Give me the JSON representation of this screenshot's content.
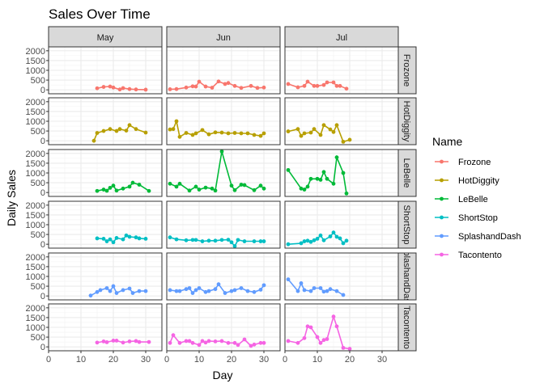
{
  "chart_data": {
    "type": "line",
    "title": "Sales Over Time",
    "xlabel": "Day",
    "ylabel": "Daily Sales",
    "xlim": [
      0,
      35
    ],
    "ylim": [
      -200,
      2200
    ],
    "x_ticks": [
      0,
      10,
      20,
      30
    ],
    "y_ticks": [
      0,
      500,
      1000,
      1500,
      2000
    ],
    "grid": true,
    "legend": {
      "title": "Name",
      "placement": "right"
    },
    "columns": [
      "May",
      "Jun",
      "Jul"
    ],
    "rows": [
      "Frozone",
      "HotDiggity",
      "LeBelle",
      "ShortStop",
      "SplashandDash",
      "Tacontento"
    ],
    "series": [
      {
        "name": "Frozone",
        "color": "#F8766D",
        "May": [
          [
            15,
            80
          ],
          [
            17,
            150
          ],
          [
            19,
            170
          ],
          [
            20,
            120
          ],
          [
            22,
            20
          ],
          [
            23,
            90
          ],
          [
            25,
            40
          ],
          [
            27,
            20
          ],
          [
            30,
            10
          ]
        ],
        "Jun": [
          [
            1,
            30
          ],
          [
            3,
            40
          ],
          [
            6,
            120
          ],
          [
            8,
            180
          ],
          [
            9,
            170
          ],
          [
            10,
            420
          ],
          [
            12,
            170
          ],
          [
            14,
            110
          ],
          [
            16,
            430
          ],
          [
            18,
            300
          ],
          [
            19,
            350
          ],
          [
            21,
            200
          ],
          [
            23,
            100
          ],
          [
            26,
            200
          ],
          [
            28,
            100
          ],
          [
            30,
            120
          ]
        ],
        "Jul": [
          [
            1,
            300
          ],
          [
            4,
            130
          ],
          [
            6,
            200
          ],
          [
            7,
            420
          ],
          [
            9,
            200
          ],
          [
            10,
            200
          ],
          [
            12,
            250
          ],
          [
            13,
            380
          ],
          [
            15,
            380
          ],
          [
            16,
            200
          ],
          [
            17,
            200
          ],
          [
            19,
            60
          ]
        ]
      },
      {
        "name": "HotDiggity",
        "color": "#B79F00",
        "May": [
          [
            14,
            0
          ],
          [
            15,
            400
          ],
          [
            17,
            500
          ],
          [
            19,
            600
          ],
          [
            21,
            500
          ],
          [
            22,
            600
          ],
          [
            24,
            520
          ],
          [
            25,
            800
          ],
          [
            27,
            600
          ],
          [
            30,
            420
          ]
        ],
        "Jun": [
          [
            1,
            580
          ],
          [
            2,
            600
          ],
          [
            3,
            1000
          ],
          [
            4,
            200
          ],
          [
            6,
            400
          ],
          [
            8,
            300
          ],
          [
            9,
            380
          ],
          [
            11,
            550
          ],
          [
            13,
            330
          ],
          [
            15,
            430
          ],
          [
            17,
            420
          ],
          [
            19,
            380
          ],
          [
            21,
            400
          ],
          [
            23,
            380
          ],
          [
            25,
            380
          ],
          [
            27,
            300
          ],
          [
            29,
            250
          ],
          [
            30,
            380
          ]
        ],
        "Jul": [
          [
            1,
            480
          ],
          [
            4,
            600
          ],
          [
            5,
            250
          ],
          [
            6,
            380
          ],
          [
            8,
            420
          ],
          [
            9,
            600
          ],
          [
            11,
            300
          ],
          [
            12,
            800
          ],
          [
            14,
            580
          ],
          [
            15,
            450
          ],
          [
            16,
            800
          ],
          [
            18,
            -50
          ],
          [
            20,
            50
          ]
        ]
      },
      {
        "name": "LeBelle",
        "color": "#00BA38",
        "May": [
          [
            15,
            80
          ],
          [
            17,
            150
          ],
          [
            18,
            90
          ],
          [
            19,
            240
          ],
          [
            20,
            350
          ],
          [
            21,
            100
          ],
          [
            23,
            200
          ],
          [
            25,
            300
          ],
          [
            26,
            500
          ],
          [
            28,
            400
          ],
          [
            31,
            80
          ]
        ],
        "Jun": [
          [
            1,
            450
          ],
          [
            3,
            300
          ],
          [
            4,
            450
          ],
          [
            7,
            100
          ],
          [
            9,
            300
          ],
          [
            10,
            150
          ],
          [
            12,
            250
          ],
          [
            14,
            200
          ],
          [
            15,
            100
          ],
          [
            17,
            2100
          ],
          [
            20,
            350
          ],
          [
            21,
            120
          ],
          [
            23,
            400
          ],
          [
            24,
            380
          ],
          [
            27,
            120
          ],
          [
            29,
            350
          ],
          [
            30,
            200
          ]
        ],
        "Jul": [
          [
            1,
            1150
          ],
          [
            5,
            200
          ],
          [
            6,
            150
          ],
          [
            7,
            300
          ],
          [
            8,
            700
          ],
          [
            10,
            700
          ],
          [
            11,
            650
          ],
          [
            12,
            1050
          ],
          [
            13,
            700
          ],
          [
            15,
            450
          ],
          [
            16,
            1800
          ],
          [
            18,
            1000
          ],
          [
            19,
            -50
          ]
        ]
      },
      {
        "name": "ShortStop",
        "color": "#00BFC4",
        "May": [
          [
            15,
            300
          ],
          [
            17,
            280
          ],
          [
            18,
            150
          ],
          [
            19,
            250
          ],
          [
            20,
            100
          ],
          [
            21,
            320
          ],
          [
            23,
            250
          ],
          [
            24,
            450
          ],
          [
            25,
            380
          ],
          [
            27,
            350
          ],
          [
            28,
            300
          ],
          [
            30,
            280
          ]
        ],
        "Jun": [
          [
            1,
            350
          ],
          [
            3,
            250
          ],
          [
            6,
            200
          ],
          [
            8,
            220
          ],
          [
            9,
            220
          ],
          [
            11,
            150
          ],
          [
            13,
            180
          ],
          [
            15,
            180
          ],
          [
            17,
            220
          ],
          [
            19,
            230
          ],
          [
            20,
            100
          ],
          [
            21,
            -100
          ],
          [
            22,
            220
          ],
          [
            24,
            150
          ],
          [
            27,
            150
          ],
          [
            29,
            150
          ],
          [
            30,
            150
          ]
        ],
        "Jul": [
          [
            1,
            0
          ],
          [
            5,
            50
          ],
          [
            6,
            150
          ],
          [
            7,
            180
          ],
          [
            8,
            120
          ],
          [
            9,
            200
          ],
          [
            10,
            280
          ],
          [
            11,
            450
          ],
          [
            12,
            200
          ],
          [
            14,
            400
          ],
          [
            15,
            600
          ],
          [
            16,
            380
          ],
          [
            17,
            300
          ],
          [
            18,
            50
          ],
          [
            19,
            180
          ]
        ]
      },
      {
        "name": "SplashandDash",
        "color": "#619CFF",
        "May": [
          [
            13,
            20
          ],
          [
            15,
            200
          ],
          [
            16,
            300
          ],
          [
            18,
            400
          ],
          [
            19,
            250
          ],
          [
            20,
            500
          ],
          [
            21,
            150
          ],
          [
            23,
            300
          ],
          [
            25,
            380
          ],
          [
            26,
            150
          ],
          [
            28,
            250
          ],
          [
            30,
            250
          ]
        ],
        "Jun": [
          [
            1,
            300
          ],
          [
            3,
            250
          ],
          [
            4,
            250
          ],
          [
            6,
            350
          ],
          [
            7,
            400
          ],
          [
            8,
            150
          ],
          [
            9,
            300
          ],
          [
            10,
            400
          ],
          [
            12,
            200
          ],
          [
            13,
            250
          ],
          [
            15,
            350
          ],
          [
            16,
            600
          ],
          [
            18,
            150
          ],
          [
            20,
            250
          ],
          [
            21,
            300
          ],
          [
            23,
            400
          ],
          [
            25,
            250
          ],
          [
            27,
            200
          ],
          [
            29,
            320
          ],
          [
            30,
            550
          ]
        ],
        "Jul": [
          [
            1,
            850
          ],
          [
            4,
            250
          ],
          [
            5,
            650
          ],
          [
            6,
            300
          ],
          [
            8,
            250
          ],
          [
            9,
            400
          ],
          [
            11,
            400
          ],
          [
            12,
            220
          ],
          [
            13,
            250
          ],
          [
            14,
            350
          ],
          [
            16,
            250
          ],
          [
            18,
            50
          ]
        ]
      },
      {
        "name": "Tacontento",
        "color": "#F564E3",
        "May": [
          [
            15,
            220
          ],
          [
            17,
            280
          ],
          [
            18,
            240
          ],
          [
            20,
            320
          ],
          [
            21,
            320
          ],
          [
            23,
            220
          ],
          [
            25,
            280
          ],
          [
            27,
            300
          ],
          [
            28,
            250
          ],
          [
            31,
            250
          ]
        ],
        "Jun": [
          [
            1,
            200
          ],
          [
            2,
            600
          ],
          [
            4,
            200
          ],
          [
            6,
            300
          ],
          [
            7,
            300
          ],
          [
            8,
            200
          ],
          [
            10,
            100
          ],
          [
            11,
            300
          ],
          [
            12,
            220
          ],
          [
            13,
            300
          ],
          [
            15,
            280
          ],
          [
            17,
            300
          ],
          [
            19,
            200
          ],
          [
            21,
            200
          ],
          [
            22,
            100
          ],
          [
            24,
            380
          ],
          [
            26,
            50
          ],
          [
            27,
            120
          ],
          [
            29,
            200
          ],
          [
            30,
            200
          ]
        ],
        "Jul": [
          [
            1,
            300
          ],
          [
            4,
            200
          ],
          [
            6,
            450
          ],
          [
            7,
            1050
          ],
          [
            8,
            1000
          ],
          [
            10,
            500
          ],
          [
            11,
            200
          ],
          [
            12,
            350
          ],
          [
            13,
            400
          ],
          [
            15,
            1550
          ],
          [
            16,
            1050
          ],
          [
            18,
            -50
          ],
          [
            20,
            -100
          ]
        ]
      }
    ]
  }
}
